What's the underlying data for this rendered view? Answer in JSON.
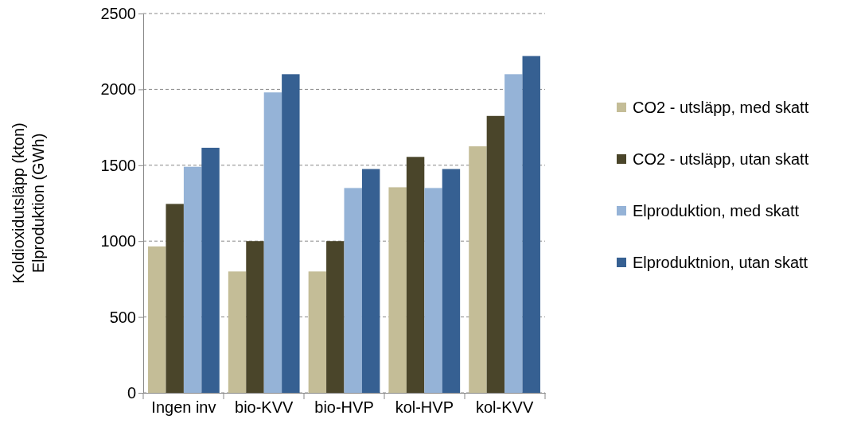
{
  "chart_data": {
    "type": "bar",
    "ylabel": "Koldioxidutsläpp (kton)\nElproduktion (GWh)",
    "categories": [
      "Ingen inv",
      "bio-KVV",
      "bio-HVP",
      "kol-HVP",
      "kol-KVV"
    ],
    "series": [
      {
        "name": "CO2 - utsläpp, med skatt",
        "color": "#c4bd97",
        "values": [
          965,
          800,
          800,
          1355,
          1625
        ]
      },
      {
        "name": "CO2 - utsläpp, utan skatt",
        "color": "#4a452a",
        "values": [
          1245,
          1000,
          1000,
          1555,
          1825
        ]
      },
      {
        "name": "Elproduktion, med skatt",
        "color": "#95b3d7",
        "values": [
          1490,
          1980,
          1350,
          1350,
          2100
        ]
      },
      {
        "name": "Elproduktnion, utan skatt",
        "color": "#366092",
        "values": [
          1615,
          2100,
          1475,
          1475,
          2220
        ]
      }
    ],
    "ylim": [
      0,
      2500
    ],
    "yticks": [
      0,
      500,
      1000,
      1500,
      2000,
      2500
    ],
    "grid": "y",
    "legend": "right"
  }
}
